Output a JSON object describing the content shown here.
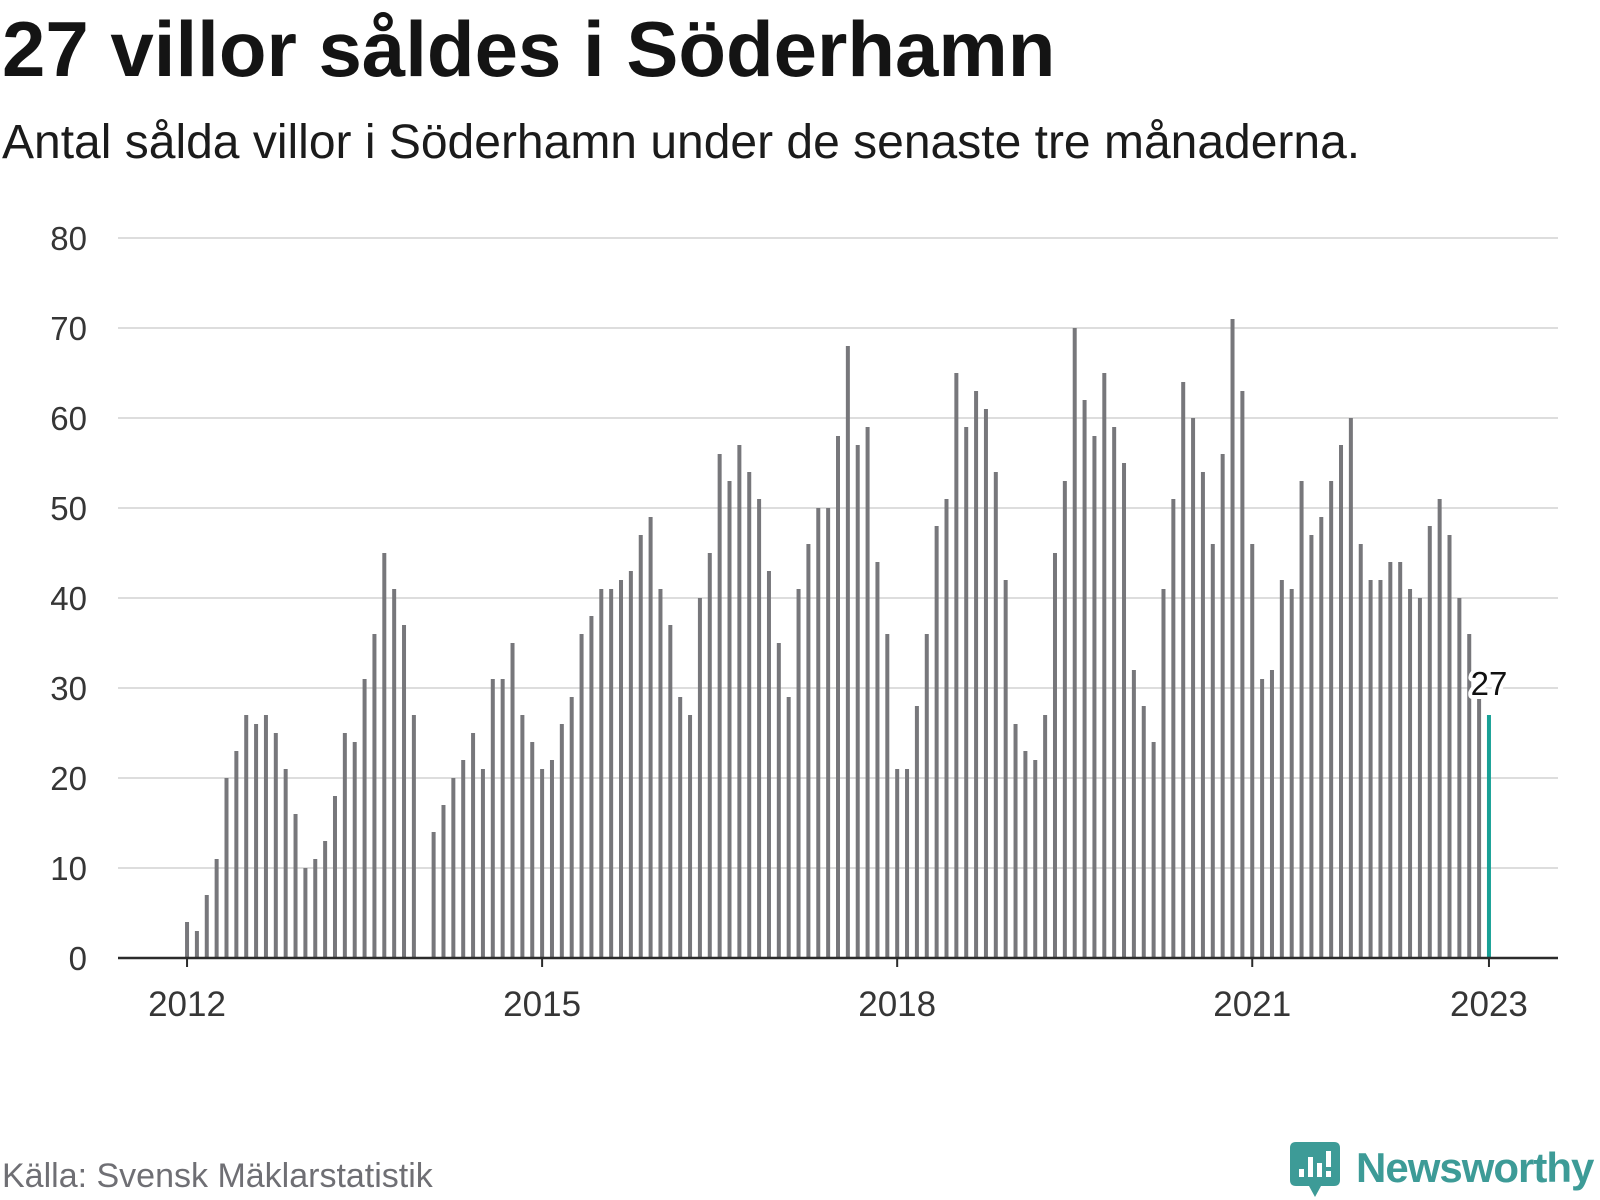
{
  "chart_data": {
    "type": "bar",
    "title": "27 villor såldes i Söderhamn",
    "subtitle": "Antal sålda villor i Söderhamn under de senaste tre månaderna.",
    "x": [
      "2012-01",
      "2012-02",
      "2012-03",
      "2012-04",
      "2012-05",
      "2012-06",
      "2012-07",
      "2012-08",
      "2012-09",
      "2012-10",
      "2012-11",
      "2012-12",
      "2013-01",
      "2013-02",
      "2013-03",
      "2013-04",
      "2013-05",
      "2013-06",
      "2013-07",
      "2013-08",
      "2013-09",
      "2013-10",
      "2013-11",
      "2013-12",
      "2014-01",
      "2014-02",
      "2014-03",
      "2014-04",
      "2014-05",
      "2014-06",
      "2014-07",
      "2014-08",
      "2014-09",
      "2014-10",
      "2014-11",
      "2014-12",
      "2015-01",
      "2015-02",
      "2015-03",
      "2015-04",
      "2015-05",
      "2015-06",
      "2015-07",
      "2015-08",
      "2015-09",
      "2015-10",
      "2015-11",
      "2015-12",
      "2016-01",
      "2016-02",
      "2016-03",
      "2016-04",
      "2016-05",
      "2016-06",
      "2016-07",
      "2016-08",
      "2016-09",
      "2016-10",
      "2016-11",
      "2016-12",
      "2017-01",
      "2017-02",
      "2017-03",
      "2017-04",
      "2017-05",
      "2017-06",
      "2017-07",
      "2017-08",
      "2017-09",
      "2017-10",
      "2017-11",
      "2017-12",
      "2018-01",
      "2018-02",
      "2018-03",
      "2018-04",
      "2018-05",
      "2018-06",
      "2018-07",
      "2018-08",
      "2018-09",
      "2018-10",
      "2018-11",
      "2018-12",
      "2019-01",
      "2019-02",
      "2019-03",
      "2019-04",
      "2019-05",
      "2019-06",
      "2019-07",
      "2019-08",
      "2019-09",
      "2019-10",
      "2019-11",
      "2019-12",
      "2020-01",
      "2020-02",
      "2020-03",
      "2020-04",
      "2020-05",
      "2020-06",
      "2020-07",
      "2020-08",
      "2020-09",
      "2020-10",
      "2020-11",
      "2020-12",
      "2021-01",
      "2021-02",
      "2021-03",
      "2021-04",
      "2021-05",
      "2021-06",
      "2021-07",
      "2021-08",
      "2021-09",
      "2021-10",
      "2021-11",
      "2021-12",
      "2022-01",
      "2022-02",
      "2022-03",
      "2022-04",
      "2022-05",
      "2022-06",
      "2022-07",
      "2022-08",
      "2022-09",
      "2022-10",
      "2022-11",
      "2022-12",
      "2023-01"
    ],
    "values": [
      4,
      3,
      7,
      11,
      20,
      23,
      27,
      26,
      27,
      25,
      21,
      16,
      10,
      11,
      13,
      18,
      25,
      24,
      31,
      36,
      45,
      41,
      37,
      27,
      null,
      14,
      17,
      20,
      22,
      25,
      21,
      31,
      31,
      35,
      27,
      24,
      21,
      22,
      26,
      29,
      36,
      38,
      41,
      41,
      42,
      43,
      47,
      49,
      41,
      37,
      29,
      27,
      40,
      45,
      56,
      53,
      57,
      54,
      51,
      43,
      35,
      29,
      41,
      46,
      50,
      50,
      58,
      68,
      57,
      59,
      44,
      36,
      21,
      21,
      28,
      36,
      48,
      51,
      65,
      59,
      63,
      61,
      54,
      42,
      26,
      23,
      22,
      27,
      45,
      53,
      70,
      62,
      58,
      65,
      59,
      55,
      32,
      28,
      24,
      41,
      51,
      64,
      60,
      54,
      46,
      56,
      71,
      63,
      46,
      31,
      32,
      42,
      41,
      53,
      47,
      49,
      53,
      57,
      60,
      46,
      42,
      42,
      44,
      44,
      41,
      40,
      48,
      51,
      47,
      40,
      36,
      29,
      27
    ],
    "xticks": [
      "2012",
      "2015",
      "2018",
      "2021",
      "2023"
    ],
    "yticks": [
      0,
      10,
      20,
      30,
      40,
      50,
      60,
      70,
      80
    ],
    "ylim": [
      0,
      80
    ],
    "xlim": [
      "2011-06",
      "2023-08"
    ],
    "grid": true,
    "highlight_x": "2023-01",
    "annotations": [
      {
        "x": "2023-01",
        "text": "27"
      }
    ],
    "colors": {
      "bar": "#77777b",
      "highlight": "#18a096",
      "grid": "#dddddd",
      "axis": "#2b2b2b"
    }
  },
  "source": "Källa: Svensk Mäklarstatistik",
  "logo": {
    "text": "Newsworthy",
    "icon": "chart-speech-bubble-icon",
    "color": "#3d9b97"
  }
}
